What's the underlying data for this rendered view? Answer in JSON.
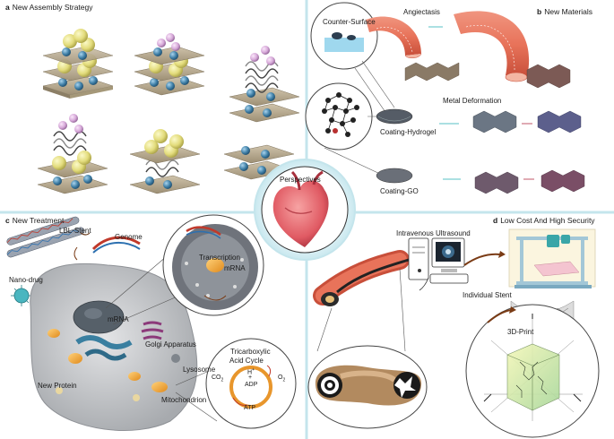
{
  "panels": {
    "a": {
      "letter": "a",
      "title": "New Assembly Strategy"
    },
    "b": {
      "letter": "b",
      "title": "New Materials",
      "labels": {
        "counter_surface": "Counter-Surface",
        "angiectasis": "Angiectasis",
        "metal_deformation": "Metal Deformation",
        "coating_hydrogel": "Coating-Hydrogel",
        "coating_go": "Coating-GO"
      }
    },
    "c": {
      "letter": "c",
      "title": "New Treatment",
      "labels": {
        "lbl_stent": "LBL-Stent",
        "genome": "Genome",
        "nano_drug": "Nano-drug",
        "transcription": "Transcription",
        "mrna_inset": "mRNA",
        "mrna": "mRNA",
        "golgi": "Golgi Apparatus",
        "lysosome": "Lysosome",
        "new_protein": "New Protein",
        "mitochondrion": "Mitochondrion",
        "tca_line1": "Tricarboxylic",
        "tca_line2": "Acid Cycle",
        "co2": "CO",
        "co2_sub": "2",
        "h_plus": "H",
        "h_sup": "+",
        "adp": "ADP",
        "o2": "O",
        "o2_sub": "2",
        "atp": "ATP",
        "plus": "+"
      }
    },
    "d": {
      "letter": "d",
      "title": "Low Cost And High Security",
      "labels": {
        "intravenous_ultrasound": "Intravenous Ultrasound",
        "individual_stent": "Individual Stent",
        "print_3d": "3D-Print"
      }
    }
  },
  "center": {
    "title": "Perspectives"
  },
  "colors": {
    "divider": "#bfe3ea",
    "vessel": "#e8735a",
    "vessel_inner": "#f3b6a3",
    "yellow_sphere": "#e5e08a",
    "blue_sphere": "#3f7fa6",
    "pink_sphere": "#d8b0d8",
    "plate": "#b7a88e",
    "cell": "#c7c9cc",
    "heart": "#e2646a"
  }
}
